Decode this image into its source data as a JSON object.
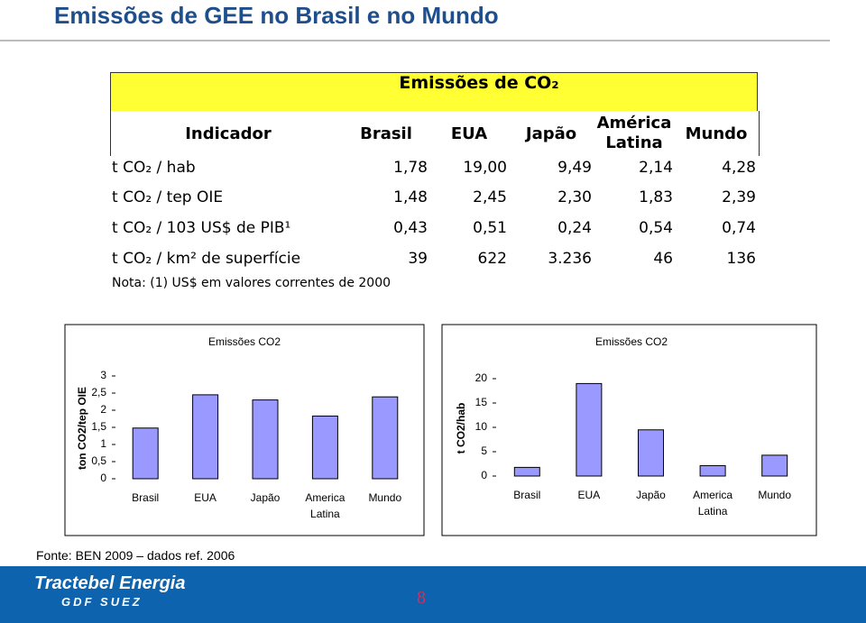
{
  "title": "Emissões de GEE no Brasil e no Mundo",
  "table": {
    "group_header": "Emissões de CO₂",
    "columns": [
      "Indicador",
      "Brasil",
      "EUA",
      "Japão",
      "América Latina",
      "Mundo"
    ],
    "rows": [
      [
        "t CO₂ / hab",
        "1,78",
        "19,00",
        "9,49",
        "2,14",
        "4,28"
      ],
      [
        "t CO₂ / tep OIE",
        "1,48",
        "2,45",
        "2,30",
        "1,83",
        "2,39"
      ],
      [
        "t CO₂ / 103 US$ de PIB¹",
        "0,43",
        "0,51",
        "0,24",
        "0,54",
        "0,74"
      ],
      [
        "t CO₂ / km² de superfície",
        "39",
        "622",
        "3.236",
        "46",
        "136"
      ]
    ],
    "note": "Nota: (1) US$ em valores correntes de 2000"
  },
  "chart_data": [
    {
      "type": "bar",
      "title": "Emissões CO2",
      "y_label": "ton CO2/tep OIE",
      "categories": [
        "Brasil",
        "EUA",
        "Japão",
        "America Latina",
        "Mundo"
      ],
      "values": [
        1.48,
        2.45,
        2.3,
        1.83,
        2.39
      ],
      "color": "#9999ff",
      "ylim": [
        0,
        3
      ],
      "yticks": [
        0,
        {
          "value": 0.5,
          "label": "0,5"
        },
        1,
        {
          "value": 1.5,
          "label": "1,5"
        },
        2,
        {
          "value": 2.5,
          "label": "2,5"
        },
        3
      ]
    },
    {
      "type": "bar",
      "title": "Emissões CO2",
      "y_label": "t CO2/hab",
      "categories": [
        "Brasil",
        "EUA",
        "Japão",
        "America Latina",
        "Mundo"
      ],
      "values": [
        1.78,
        19.0,
        9.49,
        2.14,
        4.28
      ],
      "color": "#9999ff",
      "ylim": [
        0,
        20
      ],
      "yticks": [
        0,
        5,
        10,
        15,
        20
      ]
    }
  ],
  "footer": {
    "source": "Fonte: BEN 2009 – dados ref. 2006",
    "brand": "Tractebel Energia",
    "group": "GDF SUEZ",
    "page": "8"
  }
}
